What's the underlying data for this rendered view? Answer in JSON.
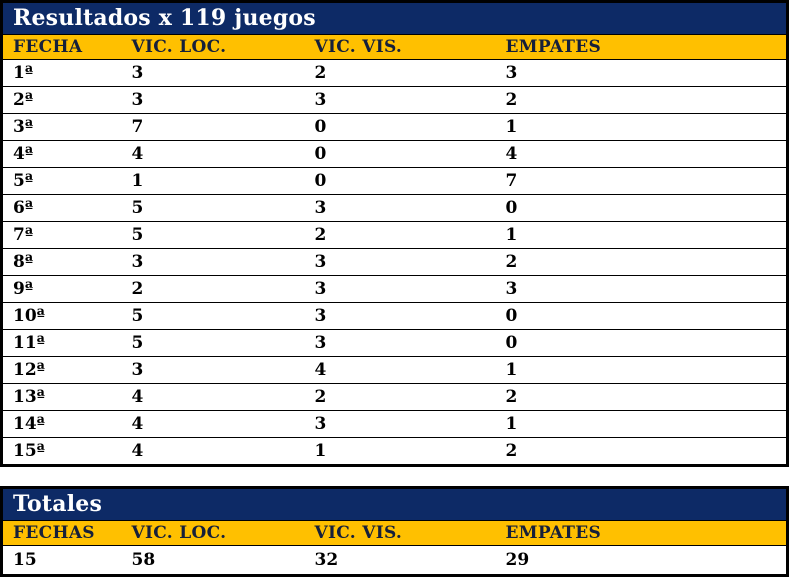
{
  "colors": {
    "title_band": "#0D2A66",
    "header_band": "#FFC000",
    "header_text": "#16203A",
    "title_text": "#FFFFFF",
    "body_text": "#000000",
    "border": "#000000"
  },
  "results_table": {
    "title": "Resultados x 119 juegos",
    "columns": [
      "FECHA",
      "VIC. LOC.",
      "VIC. VIS.",
      "EMPATES"
    ],
    "rows": [
      [
        "1ª",
        "3",
        "2",
        "3"
      ],
      [
        "2ª",
        "3",
        "3",
        "2"
      ],
      [
        "3ª",
        "7",
        "0",
        "1"
      ],
      [
        "4ª",
        "4",
        "0",
        "4"
      ],
      [
        "5ª",
        "1",
        "0",
        "7"
      ],
      [
        "6ª",
        "5",
        "3",
        "0"
      ],
      [
        "7ª",
        "5",
        "2",
        "1"
      ],
      [
        "8ª",
        "3",
        "3",
        "2"
      ],
      [
        "9ª",
        "2",
        "3",
        "3"
      ],
      [
        "10ª",
        "5",
        "3",
        "0"
      ],
      [
        "11ª",
        "5",
        "3",
        "0"
      ],
      [
        "12ª",
        "3",
        "4",
        "1"
      ],
      [
        "13ª",
        "4",
        "2",
        "2"
      ],
      [
        "14ª",
        "4",
        "3",
        "1"
      ],
      [
        "15ª",
        "4",
        "1",
        "2"
      ]
    ]
  },
  "totals_table": {
    "title": "Totales",
    "columns": [
      "FECHAS",
      "VIC. LOC.",
      "VIC. VIS.",
      "EMPATES"
    ],
    "rows": [
      [
        "15",
        "58",
        "32",
        "29"
      ]
    ]
  }
}
